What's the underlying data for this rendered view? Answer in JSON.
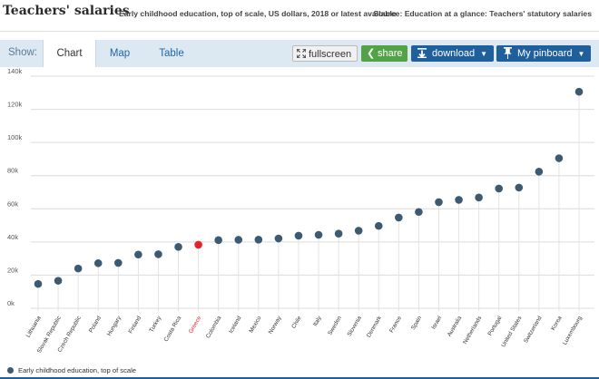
{
  "header": {
    "title": "Teachers' salaries",
    "subtitle": "Early childhood education, top of scale, US dollars, 2018 or latest available",
    "source": "Source: Education at a glance: Teachers' statutory salaries"
  },
  "toolbar": {
    "show_label": "Show:",
    "tabs": [
      {
        "label": "Chart",
        "active": true
      },
      {
        "label": "Map",
        "active": false
      },
      {
        "label": "Table",
        "active": false
      }
    ],
    "fullscreen_label": "fullscreen",
    "share_label": "share",
    "download_label": "download",
    "pinboard_label": "My pinboard",
    "caret": "▼"
  },
  "colors": {
    "point": "#3d5a73",
    "highlight": "#e0262a",
    "accent": "#1f5f9c",
    "share": "#52a345",
    "tabbar": "#dce9f3"
  },
  "chart_data": {
    "type": "scatter",
    "style": "lollipop",
    "title": "Teachers' salaries",
    "subtitle": "Early childhood education, top of scale, US dollars, 2018 or latest available",
    "ylim": [
      0,
      140000
    ],
    "yticks": [
      0,
      20000,
      40000,
      60000,
      80000,
      100000,
      120000,
      140000
    ],
    "ytick_labels": [
      "0k",
      "20k",
      "40k",
      "60k",
      "80k",
      "100k",
      "120k",
      "140k"
    ],
    "grid": true,
    "highlight": "Greece",
    "legend": "bottom-left",
    "series": [
      {
        "name": "Early childhood education, top of scale",
        "categories": [
          "Lithuania",
          "Slovak Republic",
          "Czech Republic",
          "Poland",
          "Hungary",
          "Finland",
          "Turkey",
          "Costa Rica",
          "Greece",
          "Colombia",
          "Iceland",
          "Mexico",
          "Norway",
          "Chile",
          "Italy",
          "Sweden",
          "Slovenia",
          "Denmark",
          "France",
          "Spain",
          "Israel",
          "Australia",
          "Netherlands",
          "Portugal",
          "United States",
          "Switzerland",
          "Korea",
          "Luxembourg"
        ],
        "values": [
          14700,
          16600,
          24000,
          27200,
          27400,
          32400,
          32600,
          37000,
          38300,
          41100,
          41300,
          41400,
          42100,
          43800,
          44300,
          45000,
          46800,
          49700,
          54700,
          58100,
          64000,
          65400,
          66800,
          72200,
          72800,
          82400,
          90500,
          130600
        ]
      }
    ]
  }
}
